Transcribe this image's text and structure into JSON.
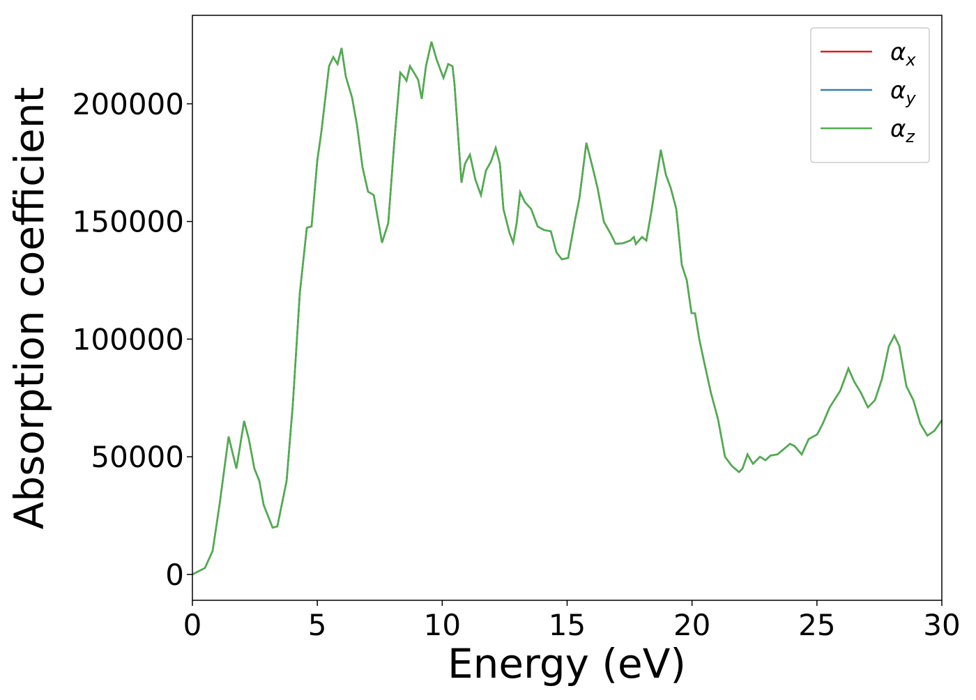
{
  "chart_data": {
    "type": "line",
    "xlabel": "Energy (eV)",
    "ylabel": "Absorption coefficient",
    "x": [
      0,
      0.5,
      0.81,
      1.09,
      1.45,
      1.76,
      2.07,
      2.26,
      2.48,
      2.68,
      2.85,
      3.21,
      3.4,
      3.77,
      4.02,
      4.3,
      4.58,
      4.77,
      5.0,
      5.16,
      5.47,
      5.64,
      5.81,
      5.97,
      6.14,
      6.39,
      6.59,
      6.81,
      7.03,
      7.26,
      7.59,
      7.84,
      8.09,
      8.32,
      8.46,
      8.57,
      8.71,
      8.9,
      9.04,
      9.18,
      9.35,
      9.57,
      9.77,
      10.05,
      10.24,
      10.41,
      10.49,
      10.77,
      10.91,
      11.11,
      11.33,
      11.55,
      11.75,
      11.95,
      12.14,
      12.31,
      12.45,
      12.7,
      12.84,
      12.98,
      13.12,
      13.31,
      13.56,
      13.82,
      14.07,
      14.35,
      14.57,
      14.79,
      15.04,
      15.32,
      15.49,
      15.77,
      16.02,
      16.22,
      16.47,
      16.75,
      16.94,
      17.22,
      17.53,
      17.67,
      17.75,
      18.0,
      18.17,
      18.39,
      18.75,
      18.95,
      19.15,
      19.37,
      19.59,
      19.79,
      19.98,
      20.12,
      20.29,
      20.49,
      20.76,
      21.04,
      21.32,
      21.6,
      21.88,
      22.02,
      22.22,
      22.44,
      22.72,
      22.94,
      23.14,
      23.42,
      23.7,
      23.92,
      24.11,
      24.39,
      24.67,
      25.01,
      25.23,
      25.51,
      25.93,
      26.26,
      26.49,
      26.77,
      27.04,
      27.32,
      27.6,
      27.88,
      28.1,
      28.3,
      28.58,
      28.86,
      29.14,
      29.42,
      29.7,
      30.0
    ],
    "series": [
      {
        "name": "αx",
        "color": "#e41a1c",
        "values": [
          0,
          2700,
          10000,
          30000,
          58600,
          45000,
          65200,
          57500,
          45000,
          39700,
          29600,
          19900,
          20400,
          39700,
          72300,
          119700,
          147300,
          147900,
          176000,
          187900,
          216000,
          219900,
          216900,
          223700,
          211600,
          202700,
          190800,
          173000,
          162700,
          161200,
          141000,
          149300,
          184900,
          213300,
          211600,
          209800,
          216000,
          212700,
          210100,
          202100,
          216000,
          226400,
          219000,
          211000,
          216900,
          216000,
          208600,
          166500,
          174500,
          178400,
          167700,
          161200,
          171600,
          175400,
          181300,
          174500,
          155300,
          144900,
          141000,
          149300,
          162400,
          158200,
          155300,
          147900,
          146400,
          145800,
          136900,
          133900,
          134500,
          150800,
          159700,
          183400,
          173000,
          164100,
          149900,
          144600,
          140500,
          140700,
          141900,
          143400,
          140400,
          143400,
          141900,
          155300,
          180400,
          170000,
          164100,
          155300,
          131600,
          125000,
          111000,
          111000,
          100000,
          90000,
          77000,
          66000,
          50000,
          46000,
          43500,
          45000,
          51000,
          47000,
          50000,
          48500,
          50500,
          51000,
          53500,
          55500,
          54500,
          51000,
          57500,
          59500,
          64000,
          71000,
          78000,
          87500,
          82000,
          77000,
          71000,
          74000,
          83000,
          97000,
          101500,
          97000,
          80000,
          74000,
          64000,
          59000,
          61000,
          65500
        ]
      },
      {
        "name": "αy",
        "color": "#377eb8",
        "values": [
          0,
          2700,
          10000,
          30000,
          58600,
          45000,
          65200,
          57500,
          45000,
          39700,
          29600,
          19900,
          20400,
          39700,
          72300,
          119700,
          147300,
          147900,
          176000,
          187900,
          216000,
          219900,
          216900,
          223700,
          211600,
          202700,
          190800,
          173000,
          162700,
          161200,
          141000,
          149300,
          184900,
          213300,
          211600,
          209800,
          216000,
          212700,
          210100,
          202100,
          216000,
          226400,
          219000,
          211000,
          216900,
          216000,
          208600,
          166500,
          174500,
          178400,
          167700,
          161200,
          171600,
          175400,
          181300,
          174500,
          155300,
          144900,
          141000,
          149300,
          162400,
          158200,
          155300,
          147900,
          146400,
          145800,
          136900,
          133900,
          134500,
          150800,
          159700,
          183400,
          173000,
          164100,
          149900,
          144600,
          140500,
          140700,
          141900,
          143400,
          140400,
          143400,
          141900,
          155300,
          180400,
          170000,
          164100,
          155300,
          131600,
          125000,
          111000,
          111000,
          100000,
          90000,
          77000,
          66000,
          50000,
          46000,
          43500,
          45000,
          51000,
          47000,
          50000,
          48500,
          50500,
          51000,
          53500,
          55500,
          54500,
          51000,
          57500,
          59500,
          64000,
          71000,
          78000,
          87500,
          82000,
          77000,
          71000,
          74000,
          83000,
          97000,
          101500,
          97000,
          80000,
          74000,
          64000,
          59000,
          61000,
          65500
        ]
      },
      {
        "name": "αz",
        "color": "#4daf4a",
        "values": [
          0,
          2700,
          10000,
          30000,
          58600,
          45000,
          65200,
          57500,
          45000,
          39700,
          29600,
          19900,
          20400,
          39700,
          72300,
          119700,
          147300,
          147900,
          176000,
          187900,
          216000,
          219900,
          216900,
          223700,
          211600,
          202700,
          190800,
          173000,
          162700,
          161200,
          141000,
          149300,
          184900,
          213300,
          211600,
          209800,
          216000,
          212700,
          210100,
          202100,
          216000,
          226400,
          219000,
          211000,
          216900,
          216000,
          208600,
          166500,
          174500,
          178400,
          167700,
          161200,
          171600,
          175400,
          181300,
          174500,
          155300,
          144900,
          141000,
          149300,
          162400,
          158200,
          155300,
          147900,
          146400,
          145800,
          136900,
          133900,
          134500,
          150800,
          159700,
          183400,
          173000,
          164100,
          149900,
          144600,
          140500,
          140700,
          141900,
          143400,
          140400,
          143400,
          141900,
          155300,
          180400,
          170000,
          164100,
          155300,
          131600,
          125000,
          111000,
          111000,
          100000,
          90000,
          77000,
          66000,
          50000,
          46000,
          43500,
          45000,
          51000,
          47000,
          50000,
          48500,
          50500,
          51000,
          53500,
          55500,
          54500,
          51000,
          57500,
          59500,
          64000,
          71000,
          78000,
          87500,
          82000,
          77000,
          71000,
          74000,
          83000,
          97000,
          101500,
          97000,
          80000,
          74000,
          64000,
          59000,
          61000,
          65500
        ]
      }
    ],
    "xlim": [
      0,
      30
    ],
    "xticks": [
      0,
      5,
      10,
      15,
      20,
      25,
      30
    ],
    "ylim": [
      -11000,
      237600
    ],
    "yticks": [
      0,
      50000,
      100000,
      150000,
      200000
    ],
    "grid": false,
    "legend": "upper right"
  }
}
